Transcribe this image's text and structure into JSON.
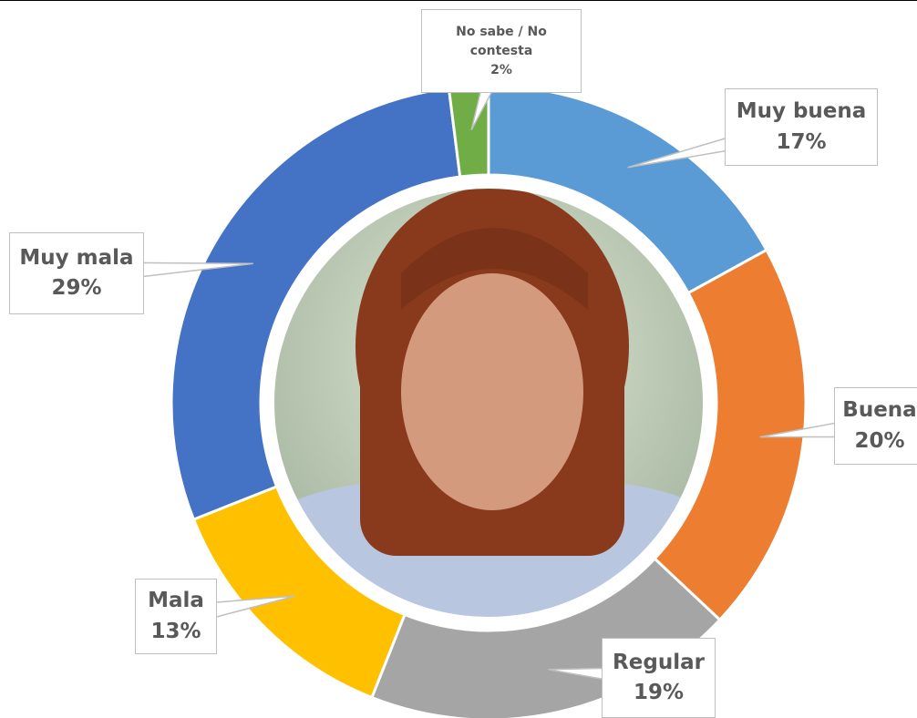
{
  "chart_data": {
    "type": "donut",
    "categories": [
      "Muy buena",
      "Buena",
      "Regular",
      "Mala",
      "Muy mala",
      "No sabe / No contesta"
    ],
    "values": [
      17,
      20,
      19,
      13,
      29,
      2
    ],
    "value_labels": [
      "17%",
      "20%",
      "19%",
      "13%",
      "29%",
      "2%"
    ],
    "colors": [
      "#5b9bd5",
      "#ed7d31",
      "#a5a5a5",
      "#ffc000",
      "#4472c4",
      "#70ad47"
    ]
  }
}
